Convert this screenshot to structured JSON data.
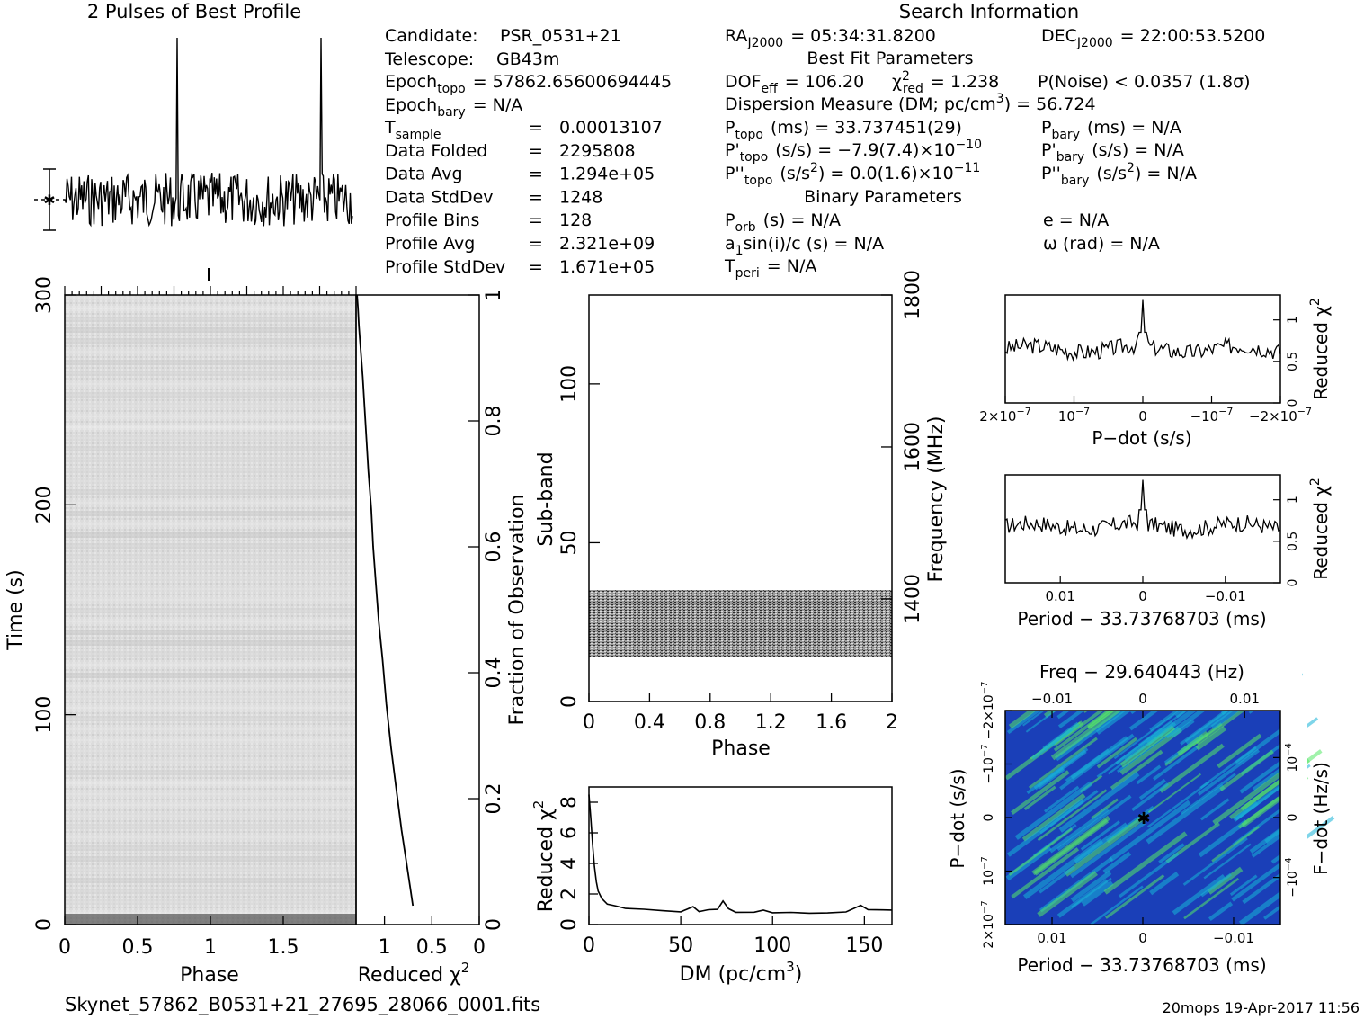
{
  "header": {
    "profile_title": "2 Pulses of Best Profile",
    "search_title": "Search Information",
    "best_fit_title": "Best Fit Parameters",
    "binary_title": "Binary Parameters"
  },
  "info": {
    "candidate_label": "Candidate:",
    "candidate_value": "PSR_0531+21",
    "telescope_label": "Telescope:",
    "telescope_value": "GB43m",
    "epoch_topo_label": "Epoch",
    "epoch_topo_sub": "topo",
    "epoch_topo_value": "= 57862.65600694445",
    "epoch_bary_label": "Epoch",
    "epoch_bary_sub": "bary",
    "epoch_bary_value": "= N/A",
    "rows": [
      {
        "label": "T",
        "sub": "sample",
        "eq": "=",
        "value": "0.00013107"
      },
      {
        "label": "Data Folded",
        "sub": "",
        "eq": "=",
        "value": "2295808"
      },
      {
        "label": "Data Avg",
        "sub": "",
        "eq": "=",
        "value": "1.294e+05"
      },
      {
        "label": "Data StdDev",
        "sub": "",
        "eq": "=",
        "value": "1248"
      },
      {
        "label": "Profile Bins",
        "sub": "",
        "eq": "=",
        "value": "128"
      },
      {
        "label": "Profile Avg",
        "sub": "",
        "eq": "=",
        "value": "2.321e+09"
      },
      {
        "label": "Profile StdDev",
        "sub": "",
        "eq": "=",
        "value": "1.671e+05"
      }
    ]
  },
  "search": {
    "ra_label": "RA",
    "ra_sub": "J2000",
    "ra_value": "= 05:34:31.8200",
    "dec_label": "DEC",
    "dec_sub": "J2000",
    "dec_value": "= 22:00:53.5200",
    "dof_label": "DOF",
    "dof_sub": "eff",
    "dof_value": "= 106.20",
    "chi_label": "χ",
    "chi_sup": "2",
    "chi_sub": "red",
    "chi_value": "= 1.238",
    "pnoise": "P(Noise) < 0.0357   (1.8σ)",
    "dm_label": "Dispersion Measure (DM; pc/cm",
    "dm_sup": "3",
    "dm_value": ") = 56.724",
    "ptopo_label": "P",
    "ptopo_sub": "topo",
    "ptopo_value": "(ms) =  33.737451(29)",
    "pbary_label": "P",
    "pbary_sub": "bary",
    "pbary_value": "(ms) = N/A",
    "pdtopo_label": "P'",
    "pdtopo_sub": "topo",
    "pdtopo_value": "(s/s) = −7.9(7.4)×10",
    "pdtopo_exp": "−10",
    "pdbary_label": "P'",
    "pdbary_sub": "bary",
    "pdbary_value": "(s/s) = N/A",
    "pddtopo_label": "P''",
    "pddtopo_sub": "topo",
    "pddtopo_value": "(s/s",
    "pddtopo_sup": "2",
    "pddtopo_value2": ") = 0.0(1.6)×10",
    "pddtopo_exp": "−11",
    "pddbary_label": "P''",
    "pddbary_sub": "bary",
    "pddbary_value": "(s/s",
    "pddbary_sup": "2",
    "pddbary_value2": ") = N/A",
    "porb_label": "P",
    "porb_sub": "orb",
    "porb_value": "(s) = N/A",
    "e_value": "e = N/A",
    "a1_label": "a",
    "a1_sub": "1",
    "a1_value": "sin(i)/c (s) = N/A",
    "omega_value": "ω (rad) = N/A",
    "tperi_label": "T",
    "tperi_sub": "peri",
    "tperi_value": "= N/A"
  },
  "footer": {
    "filename": "Skynet_57862_B0531+21_27695_28066_0001.fits",
    "stamp": "20mops 19-Apr-2017 11:56"
  },
  "colors": {
    "ink": "#000000",
    "map_low": "#1a3fb8",
    "map_mid": "#18b4d8",
    "map_high": "#55e868"
  },
  "chart_data": [
    {
      "id": "profile",
      "type": "line",
      "title": "2 Pulses of Best Profile",
      "xlabel": "",
      "ylabel": "",
      "xlim": [
        0,
        2
      ],
      "peaks": [
        0.78,
        1.78
      ],
      "note": "two narrow pulses over noisy baseline"
    },
    {
      "id": "time_phase",
      "type": "heatmap",
      "xlabel": "Phase",
      "ylabel": "Time (s)",
      "xlim": [
        0,
        2
      ],
      "ylim": [
        0,
        300
      ],
      "xticks": [
        "0",
        "0.5",
        "1",
        "1.5"
      ],
      "yticks": [
        "0",
        "100",
        "200",
        "300"
      ]
    },
    {
      "id": "time_chi",
      "type": "line",
      "xlabel": "Reduced χ",
      "xlabel_sup": "2",
      "ylabel": "Fraction of Observation",
      "xlim": [
        1.3,
        0
      ],
      "ylim": [
        0,
        1
      ],
      "xticks": [
        "1",
        "0.5",
        "0"
      ],
      "yticks": [
        "0.2",
        "0.4",
        "0.6",
        "0.8",
        "1"
      ],
      "x": [
        0.7,
        0.73,
        0.77,
        0.82,
        0.88,
        0.93,
        0.98,
        1.02,
        1.06,
        1.09,
        1.12,
        1.14,
        1.17,
        1.19,
        1.21,
        1.23,
        1.25,
        1.27,
        1.28,
        1.29
      ],
      "y": [
        0.03,
        0.06,
        0.1,
        0.15,
        0.22,
        0.28,
        0.35,
        0.42,
        0.48,
        0.54,
        0.6,
        0.66,
        0.72,
        0.77,
        0.82,
        0.87,
        0.91,
        0.95,
        0.98,
        1.0
      ]
    },
    {
      "id": "subband_phase",
      "type": "heatmap",
      "xlabel": "Phase",
      "ylabel": "Sub-band",
      "y2label": "Frequency (MHz)",
      "xlim": [
        0,
        2
      ],
      "ylim": [
        0,
        128
      ],
      "y2lim": [
        1265,
        1800
      ],
      "xticks": [
        "0",
        "0.4",
        "0.8",
        "1.2",
        "1.6",
        "2"
      ],
      "yticks": [
        "0",
        "50",
        "100"
      ],
      "y2ticks": [
        "1400",
        "1600",
        "1800"
      ],
      "band": [
        15,
        35
      ]
    },
    {
      "id": "dm_chi",
      "type": "line",
      "xlabel": "DM (pc/cm",
      "xlabel_sup": "3",
      "xlabel_end": ")",
      "ylabel": "Reduced χ",
      "ylabel_sup": "2",
      "xlim": [
        0,
        165
      ],
      "ylim": [
        0,
        9
      ],
      "xticks": [
        "0",
        "50",
        "100",
        "150"
      ],
      "yticks": [
        "0",
        "2",
        "4",
        "6",
        "8"
      ],
      "x": [
        0,
        1,
        2,
        3,
        4,
        5,
        7,
        10,
        15,
        20,
        30,
        40,
        50,
        56.7,
        60,
        65,
        70,
        73,
        76,
        80,
        90,
        95,
        100,
        110,
        120,
        130,
        140,
        148,
        152,
        160,
        165
      ],
      "y": [
        8.5,
        7.0,
        5.2,
        3.8,
        2.8,
        2.2,
        1.7,
        1.35,
        1.15,
        1.05,
        0.95,
        0.9,
        0.85,
        1.24,
        0.9,
        0.9,
        1.0,
        1.6,
        1.0,
        0.8,
        0.75,
        1.0,
        0.75,
        0.75,
        0.75,
        0.8,
        0.85,
        1.3,
        0.95,
        0.9,
        0.9
      ]
    },
    {
      "id": "pdot_chi",
      "type": "line",
      "xlabel": "P−dot (s/s)",
      "ylabel": "Reduced χ",
      "ylabel_sup": "2",
      "xlim": [
        2e-07,
        -2e-07
      ],
      "ylim": [
        0,
        1.3
      ],
      "xticks": [
        "2×10",
        "10",
        "0",
        "−10",
        "−2×10"
      ],
      "xtick_exp": "−7",
      "yticks": [
        "0",
        "0.5",
        "1"
      ],
      "peak_x": 0,
      "peak_y": 1.24,
      "baseline": 0.65
    },
    {
      "id": "period_chi",
      "type": "line",
      "xlabel": "Period − 33.73768703 (ms)",
      "ylabel": "Reduced χ",
      "ylabel_sup": "2",
      "xlim": [
        0.0175,
        -0.0175
      ],
      "ylim": [
        0,
        1.3
      ],
      "xticks": [
        "0.01",
        "0",
        "−0.01"
      ],
      "yticks": [
        "0",
        "0.5",
        "1"
      ],
      "peak_x": 0,
      "peak_y": 1.24,
      "baseline": 0.68
    },
    {
      "id": "period_pdot",
      "type": "heatmap",
      "title": "Freq − 29.640443 (Hz)",
      "xlabel": "Period − 33.73768703 (ms)",
      "ylabel": "P−dot (s/s)",
      "y2label": "F−dot (Hz/s)",
      "xticks": [
        "0.01",
        "0",
        "−0.01"
      ],
      "top_ticks": [
        "−0.01",
        "0",
        "0.01"
      ],
      "yticks": [
        "2×10",
        "10",
        "0",
        "−10",
        "−2×10"
      ],
      "ytick_exp": "−7",
      "y2ticks": [
        "10",
        "0",
        "−10"
      ],
      "y2tick_exp": "−4",
      "best": [
        0,
        0
      ]
    }
  ]
}
